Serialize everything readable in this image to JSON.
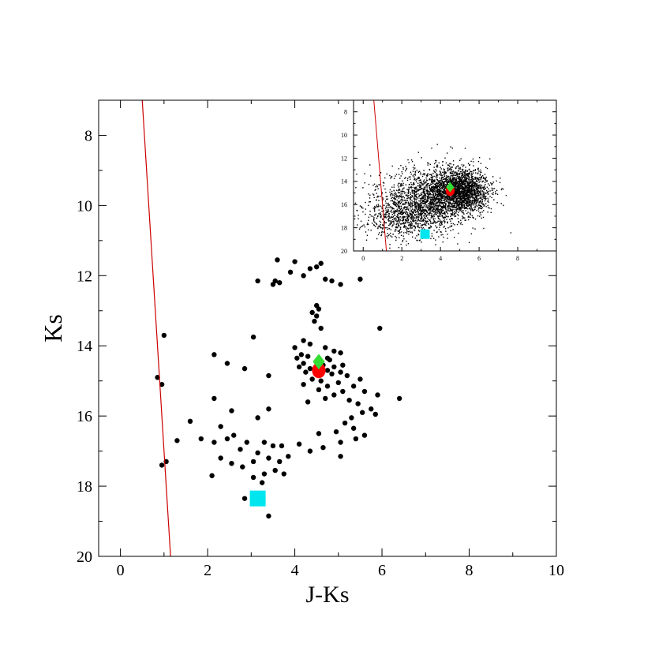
{
  "chart_data": [
    {
      "type": "scatter",
      "panel": "main",
      "xlabel": "J-Ks",
      "ylabel": "Ks",
      "xlim": [
        -0.5,
        10
      ],
      "ylim": [
        20,
        7
      ],
      "y_inverted": true,
      "xticks": [
        0,
        2,
        4,
        6,
        8,
        10
      ],
      "yticks": [
        8,
        10,
        12,
        14,
        16,
        18,
        20
      ],
      "grid": false,
      "legend": "none",
      "colors": {
        "points": "#000000",
        "line": "#cc0000",
        "green_diamond": "#33dd33",
        "red_marker": "#ff0000",
        "cyan_square": "#00e5ee"
      },
      "line": {
        "x": [
          0.5,
          1.15
        ],
        "y": [
          7,
          20
        ]
      },
      "markers": {
        "green_diamond": {
          "x": 4.55,
          "y": 14.45
        },
        "red_circle": {
          "x": 4.55,
          "y": 14.7
        },
        "cyan_square": {
          "x": 3.15,
          "y": 18.35
        }
      },
      "points": [
        [
          3.6,
          11.55
        ],
        [
          4.0,
          11.6
        ],
        [
          4.6,
          11.65
        ],
        [
          4.5,
          11.75
        ],
        [
          4.35,
          11.8
        ],
        [
          3.15,
          12.15
        ],
        [
          3.9,
          11.9
        ],
        [
          4.7,
          12.1
        ],
        [
          4.85,
          12.15
        ],
        [
          4.2,
          12.0
        ],
        [
          3.55,
          12.15
        ],
        [
          3.5,
          12.25
        ],
        [
          3.65,
          12.2
        ],
        [
          5.05,
          12.25
        ],
        [
          5.5,
          12.1
        ],
        [
          4.5,
          12.85
        ],
        [
          4.55,
          12.95
        ],
        [
          4.4,
          13.05
        ],
        [
          4.5,
          13.15
        ],
        [
          4.45,
          13.3
        ],
        [
          4.6,
          13.5
        ],
        [
          5.95,
          13.5
        ],
        [
          1.0,
          13.7
        ],
        [
          3.05,
          13.75
        ],
        [
          4.2,
          13.85
        ],
        [
          4.35,
          13.95
        ],
        [
          4.0,
          14.05
        ],
        [
          4.7,
          14.05
        ],
        [
          4.9,
          14.15
        ],
        [
          5.05,
          14.2
        ],
        [
          4.15,
          14.25
        ],
        [
          4.3,
          14.3
        ],
        [
          4.75,
          14.35
        ],
        [
          4.05,
          14.35
        ],
        [
          4.55,
          14.4
        ],
        [
          4.6,
          14.45
        ],
        [
          4.8,
          14.4
        ],
        [
          4.2,
          14.5
        ],
        [
          4.65,
          14.55
        ],
        [
          4.9,
          14.6
        ],
        [
          5.1,
          14.55
        ],
        [
          4.35,
          14.65
        ],
        [
          4.1,
          14.6
        ],
        [
          4.75,
          14.7
        ],
        [
          5.05,
          14.75
        ],
        [
          4.25,
          14.75
        ],
        [
          4.85,
          14.8
        ],
        [
          5.2,
          14.85
        ],
        [
          5.5,
          14.95
        ],
        [
          4.4,
          14.95
        ],
        [
          4.6,
          15.0
        ],
        [
          5.0,
          15.05
        ],
        [
          4.2,
          15.1
        ],
        [
          4.75,
          15.15
        ],
        [
          5.35,
          15.15
        ],
        [
          4.55,
          15.25
        ],
        [
          5.1,
          15.3
        ],
        [
          4.9,
          15.4
        ],
        [
          5.6,
          15.3
        ],
        [
          5.9,
          15.4
        ],
        [
          4.7,
          15.5
        ],
        [
          5.25,
          15.55
        ],
        [
          5.45,
          15.65
        ],
        [
          4.3,
          15.6
        ],
        [
          5.75,
          15.8
        ],
        [
          5.55,
          15.9
        ],
        [
          5.85,
          15.95
        ],
        [
          5.3,
          16.05
        ],
        [
          5.15,
          16.2
        ],
        [
          6.4,
          15.5
        ],
        [
          5.35,
          16.35
        ],
        [
          4.95,
          16.45
        ],
        [
          4.55,
          16.5
        ],
        [
          5.6,
          16.55
        ],
        [
          5.4,
          16.65
        ],
        [
          5.05,
          16.75
        ],
        [
          4.1,
          16.8
        ],
        [
          4.35,
          17.0
        ],
        [
          4.65,
          16.9
        ],
        [
          5.05,
          17.15
        ],
        [
          0.85,
          14.9
        ],
        [
          0.95,
          15.1
        ],
        [
          2.15,
          14.25
        ],
        [
          2.45,
          14.5
        ],
        [
          2.85,
          14.65
        ],
        [
          3.4,
          14.85
        ],
        [
          2.15,
          15.5
        ],
        [
          2.55,
          15.85
        ],
        [
          1.6,
          16.15
        ],
        [
          2.3,
          16.3
        ],
        [
          3.15,
          16.05
        ],
        [
          3.4,
          15.8
        ],
        [
          1.85,
          16.65
        ],
        [
          2.15,
          16.75
        ],
        [
          2.45,
          16.65
        ],
        [
          2.6,
          16.55
        ],
        [
          2.75,
          16.95
        ],
        [
          2.9,
          16.75
        ],
        [
          3.3,
          16.75
        ],
        [
          3.5,
          16.85
        ],
        [
          3.7,
          16.85
        ],
        [
          3.15,
          17.05
        ],
        [
          3.05,
          17.3
        ],
        [
          2.8,
          17.45
        ],
        [
          2.55,
          17.35
        ],
        [
          2.3,
          17.2
        ],
        [
          3.4,
          17.2
        ],
        [
          3.65,
          17.3
        ],
        [
          3.85,
          17.15
        ],
        [
          3.55,
          17.55
        ],
        [
          3.3,
          17.65
        ],
        [
          3.05,
          17.75
        ],
        [
          3.75,
          17.65
        ],
        [
          2.1,
          17.7
        ],
        [
          1.05,
          17.3
        ],
        [
          0.95,
          17.4
        ],
        [
          1.3,
          16.7
        ],
        [
          3.25,
          17.9
        ],
        [
          2.85,
          18.35
        ],
        [
          3.4,
          18.85
        ]
      ]
    },
    {
      "type": "scatter",
      "panel": "inset",
      "xlim": [
        -0.5,
        10
      ],
      "ylim": [
        20,
        7
      ],
      "y_inverted": true,
      "xticks": [
        0,
        2,
        4,
        6,
        8
      ],
      "yticks": [
        8,
        10,
        12,
        14,
        16,
        18,
        20
      ],
      "grid": false,
      "legend": "none",
      "line": {
        "x": [
          0.55,
          1.2
        ],
        "y": [
          7,
          20
        ]
      },
      "markers": {
        "green_diamond": {
          "x": 4.5,
          "y": 14.5
        },
        "red_circle": {
          "x": 4.5,
          "y": 14.8
        },
        "cyan_square": {
          "x": 3.2,
          "y": 18.55
        }
      },
      "density": {
        "total_points": 4000,
        "components": [
          {
            "weight": 0.5,
            "x_mean": 5.0,
            "x_sd": 0.75,
            "y_mean": 14.8,
            "y_sd": 0.95
          },
          {
            "weight": 0.35,
            "x_mean": 3.3,
            "x_sd": 1.2,
            "y_mean": 15.6,
            "y_sd": 1.3
          },
          {
            "weight": 0.15,
            "x_mean": 2.0,
            "x_sd": 1.0,
            "y_mean": 17.0,
            "y_sd": 1.0
          }
        ]
      }
    }
  ]
}
